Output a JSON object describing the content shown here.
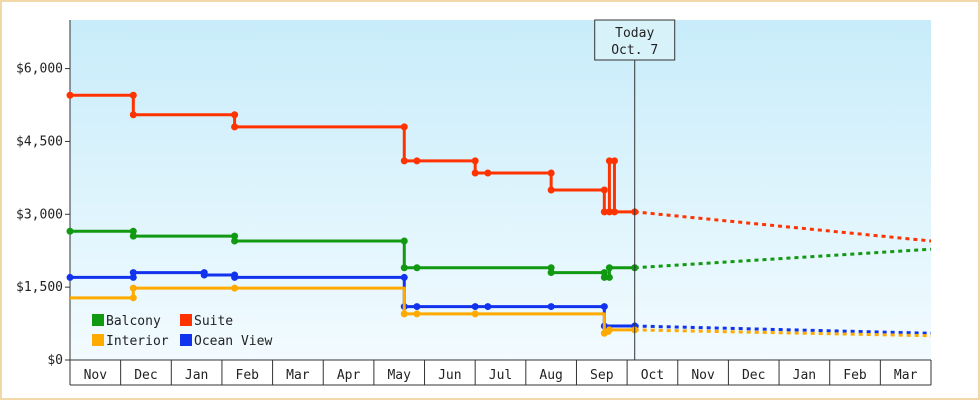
{
  "chart_data": {
    "type": "line",
    "title": "",
    "xlabel": "",
    "ylabel": "",
    "ylim": [
      0,
      7000
    ],
    "yticks": [
      {
        "value": 0,
        "label": "$0"
      },
      {
        "value": 1500,
        "label": "$1,500"
      },
      {
        "value": 3000,
        "label": "$3,000"
      },
      {
        "value": 4500,
        "label": "$4,500"
      },
      {
        "value": 6000,
        "label": "$6,000"
      }
    ],
    "months": [
      "Nov",
      "Dec",
      "Jan",
      "Feb",
      "Mar",
      "Apr",
      "May",
      "Jun",
      "Jul",
      "Aug",
      "Sep",
      "Oct",
      "Nov",
      "Dec",
      "Jan",
      "Feb",
      "Mar"
    ],
    "today": {
      "line1": "Today",
      "line2": "Oct. 7",
      "x": 11.15
    },
    "grid": false,
    "legend_position": "bottom-left",
    "series": [
      {
        "name": "Suite",
        "color": "#ff3300",
        "points": [
          [
            0,
            5450
          ],
          [
            1.25,
            5450
          ],
          [
            1.25,
            5050
          ],
          [
            3.25,
            5050
          ],
          [
            3.25,
            4800
          ],
          [
            6.6,
            4800
          ],
          [
            6.6,
            4100
          ],
          [
            6.85,
            4100
          ],
          [
            8.0,
            4100
          ],
          [
            8.0,
            3850
          ],
          [
            8.25,
            3850
          ],
          [
            9.5,
            3850
          ],
          [
            9.5,
            3500
          ],
          [
            10.55,
            3500
          ],
          [
            10.55,
            3050
          ],
          [
            10.65,
            3050
          ],
          [
            10.65,
            4100
          ],
          [
            10.75,
            4100
          ],
          [
            10.75,
            3050
          ],
          [
            11.15,
            3050
          ]
        ],
        "markers": [
          [
            0,
            5450
          ],
          [
            1.25,
            5450
          ],
          [
            1.25,
            5050
          ],
          [
            3.25,
            5050
          ],
          [
            3.25,
            4800
          ],
          [
            6.6,
            4800
          ],
          [
            6.6,
            4100
          ],
          [
            6.85,
            4100
          ],
          [
            8.0,
            4100
          ],
          [
            8.0,
            3850
          ],
          [
            8.25,
            3850
          ],
          [
            9.5,
            3850
          ],
          [
            9.5,
            3500
          ],
          [
            10.55,
            3500
          ],
          [
            10.55,
            3050
          ],
          [
            10.65,
            3050
          ],
          [
            10.65,
            4100
          ],
          [
            10.75,
            4100
          ],
          [
            10.75,
            3050
          ],
          [
            11.15,
            3050
          ]
        ],
        "forecast": [
          [
            11.15,
            3050
          ],
          [
            17.0,
            2450
          ]
        ]
      },
      {
        "name": "Balcony",
        "color": "#119911",
        "points": [
          [
            0,
            2650
          ],
          [
            1.25,
            2650
          ],
          [
            1.25,
            2550
          ],
          [
            3.25,
            2550
          ],
          [
            3.25,
            2450
          ],
          [
            6.6,
            2450
          ],
          [
            6.6,
            1900
          ],
          [
            6.85,
            1900
          ],
          [
            9.5,
            1900
          ],
          [
            9.5,
            1800
          ],
          [
            10.55,
            1800
          ],
          [
            10.55,
            1700
          ],
          [
            10.65,
            1700
          ],
          [
            10.65,
            1900
          ],
          [
            11.15,
            1900
          ]
        ],
        "markers": [
          [
            0,
            2650
          ],
          [
            1.25,
            2650
          ],
          [
            1.25,
            2550
          ],
          [
            3.25,
            2550
          ],
          [
            3.25,
            2450
          ],
          [
            6.6,
            2450
          ],
          [
            6.6,
            1900
          ],
          [
            6.85,
            1900
          ],
          [
            9.5,
            1900
          ],
          [
            9.5,
            1800
          ],
          [
            10.55,
            1800
          ],
          [
            10.55,
            1700
          ],
          [
            10.65,
            1700
          ],
          [
            10.65,
            1900
          ],
          [
            11.15,
            1900
          ]
        ],
        "forecast": [
          [
            11.15,
            1900
          ],
          [
            17.0,
            2280
          ]
        ]
      },
      {
        "name": "Ocean View",
        "color": "#1133ee",
        "points": [
          [
            0,
            1700
          ],
          [
            1.25,
            1700
          ],
          [
            1.25,
            1800
          ],
          [
            2.65,
            1800
          ],
          [
            2.65,
            1750
          ],
          [
            3.25,
            1750
          ],
          [
            3.25,
            1700
          ],
          [
            6.6,
            1700
          ],
          [
            6.6,
            1100
          ],
          [
            6.85,
            1100
          ],
          [
            8.0,
            1100
          ],
          [
            8.25,
            1100
          ],
          [
            9.5,
            1100
          ],
          [
            10.55,
            1100
          ],
          [
            10.55,
            700
          ],
          [
            11.15,
            700
          ]
        ],
        "markers": [
          [
            0,
            1700
          ],
          [
            1.25,
            1700
          ],
          [
            1.25,
            1800
          ],
          [
            2.65,
            1800
          ],
          [
            2.65,
            1750
          ],
          [
            3.25,
            1750
          ],
          [
            3.25,
            1700
          ],
          [
            6.6,
            1700
          ],
          [
            6.6,
            1100
          ],
          [
            6.85,
            1100
          ],
          [
            8.0,
            1100
          ],
          [
            8.25,
            1100
          ],
          [
            9.5,
            1100
          ],
          [
            10.55,
            1100
          ],
          [
            10.55,
            700
          ],
          [
            11.15,
            700
          ]
        ],
        "forecast": [
          [
            11.15,
            700
          ],
          [
            17.0,
            550
          ]
        ]
      },
      {
        "name": "Interior",
        "color": "#ffaa00",
        "points": [
          [
            0,
            1280
          ],
          [
            1.25,
            1280
          ],
          [
            1.25,
            1480
          ],
          [
            3.25,
            1480
          ],
          [
            6.6,
            1480
          ],
          [
            6.6,
            950
          ],
          [
            6.85,
            950
          ],
          [
            8.0,
            950
          ],
          [
            10.55,
            950
          ],
          [
            10.55,
            550
          ],
          [
            10.65,
            550
          ],
          [
            10.65,
            620
          ],
          [
            11.15,
            620
          ]
        ],
        "markers": [
          [
            1.25,
            1280
          ],
          [
            1.25,
            1480
          ],
          [
            3.25,
            1480
          ],
          [
            6.6,
            950
          ],
          [
            6.85,
            950
          ],
          [
            8.0,
            950
          ],
          [
            10.55,
            550
          ],
          [
            10.65,
            620
          ],
          [
            11.15,
            620
          ]
        ],
        "forecast": [
          [
            11.15,
            620
          ],
          [
            17.0,
            500
          ]
        ]
      }
    ],
    "legend": [
      {
        "name": "Balcony",
        "color": "#119911"
      },
      {
        "name": "Suite",
        "color": "#ff3300"
      },
      {
        "name": "Interior",
        "color": "#ffaa00"
      },
      {
        "name": "Ocean View",
        "color": "#1133ee"
      }
    ]
  }
}
